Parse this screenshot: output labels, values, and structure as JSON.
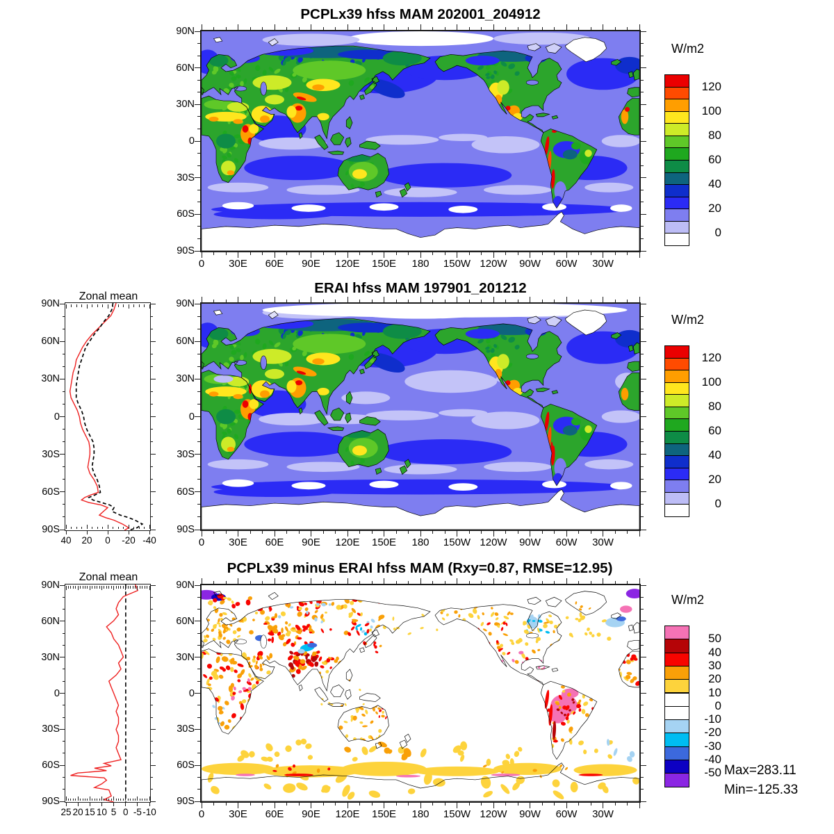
{
  "units_label": "W/m2",
  "axes": {
    "lon_tick_labels": [
      "0",
      "30E",
      "60E",
      "90E",
      "120E",
      "150E",
      "180",
      "150W",
      "120W",
      "90W",
      "60W",
      "30W"
    ],
    "lat_tick_labels": [
      "90N",
      "60N",
      "30N",
      "0",
      "30S",
      "60S",
      "90S"
    ]
  },
  "panel_top": {
    "title": "PCPLx39 hfss MAM 202001_204912",
    "colorbar_unit": "W/m2",
    "colorbar_tick_labels": [
      "120",
      "100",
      "80",
      "60",
      "40",
      "20",
      "0"
    ]
  },
  "panel_middle": {
    "title": "ERAI hfss MAM 197901_201212",
    "zonal_title": "Zonal mean",
    "zonal_x_tick_labels": [
      "40",
      "20",
      "0",
      "-20",
      "-40"
    ],
    "colorbar_unit": "W/m2",
    "colorbar_tick_labels": [
      "120",
      "100",
      "80",
      "60",
      "40",
      "20",
      "0"
    ]
  },
  "panel_bottom": {
    "title": "PCPLx39 minus ERAI hfss MAM (Rxy=0.87, RMSE=12.95)",
    "zonal_title": "Zonal mean",
    "zonal_x_tick_labels": [
      "25",
      "20",
      "15",
      "10",
      "5",
      "0",
      "-5",
      "-10"
    ],
    "colorbar_unit": "W/m2",
    "colorbar_tick_labels": [
      "50",
      "40",
      "30",
      "20",
      "10",
      "0",
      "-10",
      "-20",
      "-30",
      "-40",
      "-50"
    ],
    "max_label": "Max=283.11",
    "min_label": "Min=-125.33"
  },
  "colors": {
    "zonal_model_line": "#ee2020",
    "zonal_erai_line": "#000000",
    "ocean_base": "#7e7ef0",
    "land_base": "#2ca52c"
  },
  "chart_data": [
    {
      "type": "heatmap",
      "id": "map_model",
      "title": "PCPLx39 hfss MAM 202001_204912",
      "units": "W/m2",
      "projection": "cylindrical equidistant, lon 0E-360E left to right, lat 90N top to 90S bottom",
      "contour_levels": [
        0,
        10,
        20,
        30,
        40,
        50,
        60,
        70,
        80,
        90,
        100,
        110,
        120,
        130
      ],
      "colorbar_labeled_levels": [
        120,
        100,
        80,
        60,
        40,
        20,
        0
      ],
      "palette_low_to_high": [
        "#ffffff",
        "#bdbdf6",
        "#7e7ef0",
        "#2b2bf5",
        "#0f2ecc",
        "#0e647e",
        "#0e8c46",
        "#1fa81f",
        "#5fc828",
        "#cdeb28",
        "#ffe61e",
        "#ff9e00",
        "#ff4b00",
        "#eb0000"
      ],
      "lon_ticks": [
        "0",
        "30E",
        "60E",
        "90E",
        "120E",
        "150E",
        "180",
        "150W",
        "120W",
        "90W",
        "60W",
        "30W"
      ],
      "lat_ticks": [
        "90N",
        "60N",
        "30N",
        "0",
        "30S",
        "60S",
        "90S"
      ],
      "description": "Simulated surface sensible heat flux MAM climatology: oceans mostly 0-30 W/m2 (blue/periwinkle), continents 50-90 (green) with hotspots >100 over India, East Africa, Mexico and the Andes; Antarctica, Greenland and Arctic near or below 0 (white)."
    },
    {
      "type": "heatmap",
      "id": "map_erai",
      "title": "ERAI hfss MAM 197901_201212",
      "units": "W/m2",
      "projection": "cylindrical equidistant, lon 0E-360E left to right, lat 90N top to 90S bottom",
      "contour_levels": [
        0,
        10,
        20,
        30,
        40,
        50,
        60,
        70,
        80,
        90,
        100,
        110,
        120,
        130
      ],
      "colorbar_labeled_levels": [
        120,
        100,
        80,
        60,
        40,
        20,
        0
      ],
      "palette_low_to_high": [
        "#ffffff",
        "#bdbdf6",
        "#7e7ef0",
        "#2b2bf5",
        "#0f2ecc",
        "#0e647e",
        "#0e8c46",
        "#1fa81f",
        "#5fc828",
        "#cdeb28",
        "#ffe61e",
        "#ff9e00",
        "#ff4b00",
        "#eb0000"
      ],
      "lon_ticks": [
        "0",
        "30E",
        "60E",
        "90E",
        "120E",
        "150E",
        "180",
        "150W",
        "120W",
        "90W",
        "60W",
        "30W"
      ],
      "lat_ticks": [
        "90N",
        "60N",
        "30N",
        "0",
        "30S",
        "60S",
        "90S"
      ],
      "description": "ERA-Interim reanalysis surface sensible heat flux MAM climatology: similar pattern to model but weaker; larger pale (0-10 W/m2) subtropical ocean areas and white Arctic band."
    },
    {
      "type": "heatmap",
      "id": "map_diff",
      "title": "PCPLx39 minus ERAI hfss MAM (Rxy=0.87, RMSE=12.95)",
      "units": "W/m2",
      "statistics": {
        "Rxy": 0.87,
        "RMSE": 12.95,
        "max": 283.11,
        "min": -125.33
      },
      "annotations": [
        "Max=283.11",
        "Min=-125.33"
      ],
      "contour_levels": [
        -50,
        -40,
        -30,
        -20,
        -10,
        0,
        10,
        20,
        30,
        40,
        50
      ],
      "colorbar_labeled_levels": [
        50,
        40,
        30,
        20,
        10,
        0,
        -10,
        -20,
        -30,
        -40,
        -50
      ],
      "palette_low_to_high": [
        "#8b26e3",
        "#0d00c3",
        "#3c69dd",
        "#00bdf2",
        "#a5d3f3",
        "#ffffff",
        "#ffffff",
        "#fdd33c",
        "#f9a008",
        "#f80400",
        "#b50407",
        "#f572b5"
      ],
      "lon_ticks": [
        "0",
        "30E",
        "60E",
        "90E",
        "120E",
        "150E",
        "180",
        "150W",
        "120W",
        "90W",
        "60W",
        "30W"
      ],
      "lat_ticks": [
        "90N",
        "60N",
        "30N",
        "0",
        "30S",
        "60S",
        "90S"
      ],
      "description": "Model minus reanalysis difference: oceans near zero (white); positive bias (yellow/orange/red, locally pink >50) over most continents, strongest over India, Africa and Amazonia; yellow positive band over the Southern Ocean near 55-70S; scattered negative (blue/cyan) patches over Tibet, NE Canada and high-latitude North Atlantic (purple)."
    },
    {
      "type": "line",
      "id": "zonal_mean_flux",
      "title": "Zonal mean",
      "orientation": "vertical profile: latitude on y-axis (90N top to 90S bottom), value on x-axis reversed (40 left to -40 right)",
      "xlim": [
        40,
        -40
      ],
      "x_ticks": [
        40,
        20,
        0,
        -20,
        -40
      ],
      "series": [
        {
          "name": "PCPLx39",
          "color": "#ee2020",
          "style": "solid",
          "lat": [
            90,
            85,
            80,
            75,
            70,
            65,
            60,
            55,
            50,
            45,
            40,
            35,
            30,
            25,
            20,
            15,
            10,
            5,
            0,
            -5,
            -10,
            -15,
            -20,
            -25,
            -30,
            -35,
            -40,
            -45,
            -50,
            -55,
            -60,
            -62,
            -64,
            -66,
            -68,
            -70,
            -72,
            -75,
            -78,
            -80,
            -82,
            -85,
            -88,
            -90
          ],
          "values": [
            -8,
            -6,
            -3,
            3,
            9,
            15,
            20,
            24,
            27,
            30,
            31,
            33,
            34,
            35,
            36,
            35,
            32,
            29,
            27,
            26,
            24,
            21,
            18,
            17,
            17,
            18,
            19,
            17,
            13,
            10,
            9,
            16,
            22,
            25,
            18,
            6,
            0,
            4,
            8,
            2,
            -6,
            -14,
            -20,
            -16
          ]
        },
        {
          "name": "ERAI",
          "color": "#000000",
          "style": "dashed",
          "lat": [
            90,
            85,
            80,
            75,
            70,
            65,
            60,
            55,
            50,
            45,
            40,
            35,
            30,
            25,
            20,
            15,
            10,
            5,
            0,
            -5,
            -10,
            -15,
            -20,
            -25,
            -30,
            -35,
            -40,
            -45,
            -50,
            -55,
            -60,
            -62,
            -64,
            -66,
            -68,
            -70,
            -72,
            -75,
            -78,
            -80,
            -82,
            -85,
            -88,
            -90
          ],
          "values": [
            -5,
            -4,
            -1,
            4,
            8,
            13,
            17,
            21,
            23,
            25,
            27,
            28,
            29,
            30,
            30,
            30,
            28,
            25,
            23,
            22,
            20,
            17,
            14,
            13,
            13,
            14,
            15,
            13,
            10,
            8,
            7,
            12,
            18,
            14,
            6,
            -2,
            -6,
            -4,
            -12,
            -20,
            -26,
            -33,
            -28,
            -20
          ]
        }
      ]
    },
    {
      "type": "line",
      "id": "zonal_mean_diff",
      "title": "Zonal mean",
      "orientation": "vertical profile: latitude on y-axis (90N top to 90S bottom), value on x-axis reversed (25 left to -10 right)",
      "xlim": [
        25,
        -10
      ],
      "x_ticks": [
        25,
        20,
        15,
        10,
        5,
        0,
        -5,
        -10
      ],
      "reference_line_x": 0,
      "series": [
        {
          "name": "PCPLx39 minus ERAI",
          "color": "#ee2020",
          "style": "solid",
          "lat": [
            90,
            85,
            80,
            75,
            70,
            65,
            60,
            55,
            50,
            45,
            40,
            35,
            30,
            25,
            20,
            15,
            10,
            5,
            0,
            -5,
            -10,
            -15,
            -20,
            -25,
            -30,
            -35,
            -40,
            -45,
            -50,
            -55,
            -58,
            -60,
            -62,
            -64,
            -66,
            -68,
            -70,
            -72,
            -75,
            -78,
            -80,
            -85,
            -88,
            -90
          ],
          "values": [
            -4,
            -5,
            1,
            3,
            4,
            3,
            5,
            8,
            6,
            5,
            3,
            2,
            1,
            3,
            2,
            4,
            7,
            6,
            5,
            4,
            3,
            4,
            3,
            3,
            4,
            3,
            3,
            4,
            3,
            2,
            9,
            6,
            13,
            8,
            20,
            23,
            9,
            8,
            10,
            13,
            7,
            6,
            9,
            5
          ]
        }
      ]
    }
  ]
}
